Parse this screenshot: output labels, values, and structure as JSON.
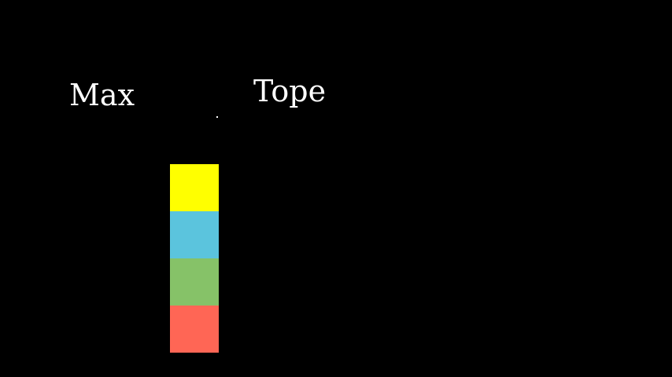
{
  "labels": {
    "left": "Max",
    "right": "Tope"
  },
  "stack": {
    "blocks": [
      {
        "color": "#ffff00"
      },
      {
        "color": "#5bc4dd"
      },
      {
        "color": "#86c268"
      },
      {
        "color": "#ff6655"
      }
    ]
  }
}
